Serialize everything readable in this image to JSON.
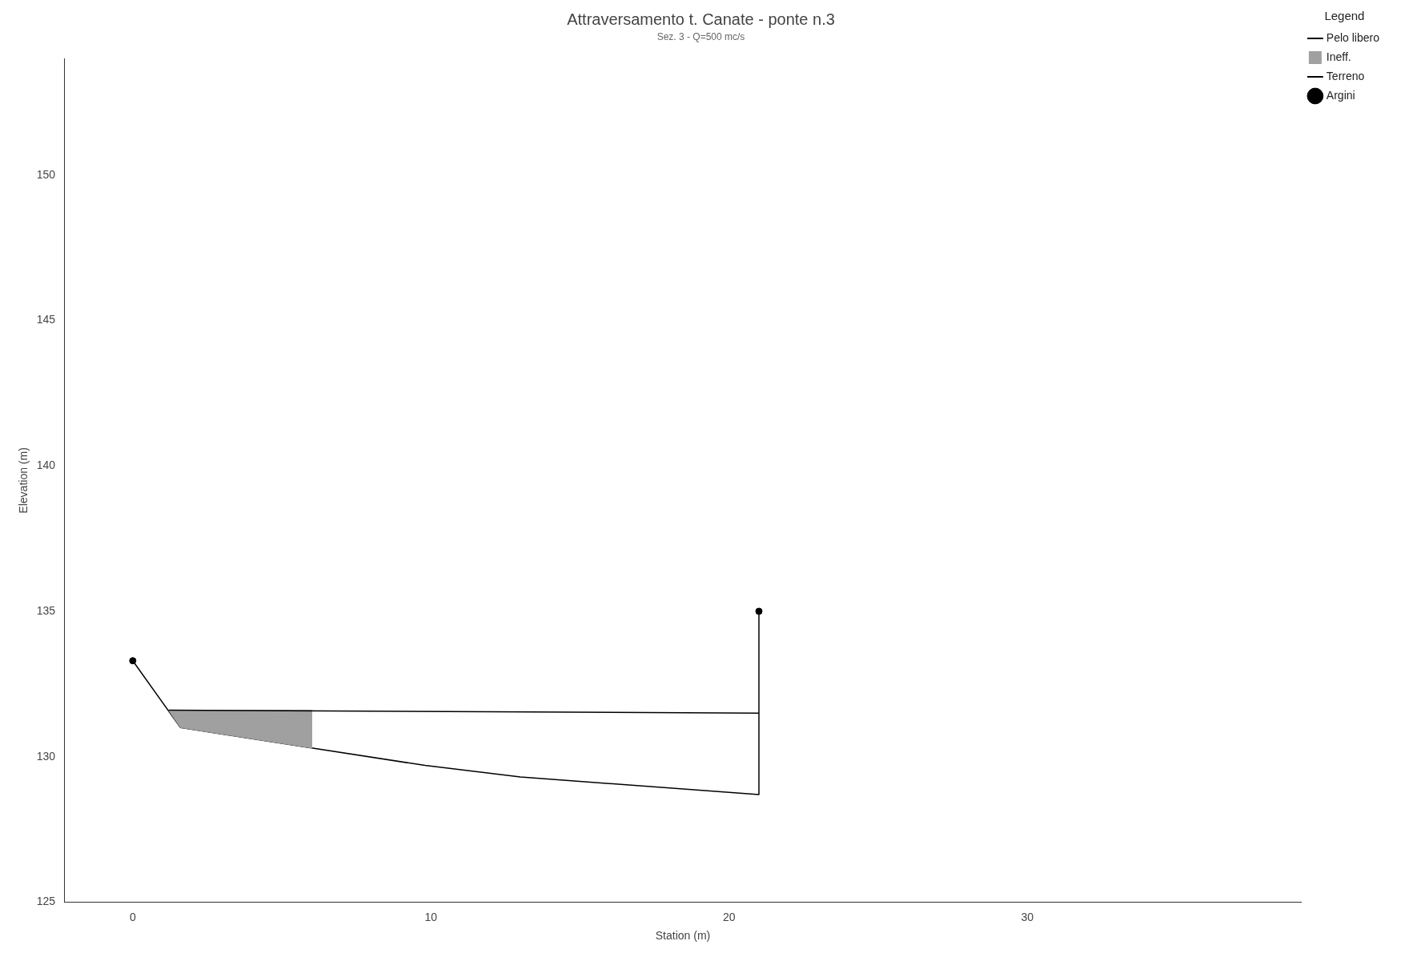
{
  "chart_data": {
    "type": "line",
    "title": "Attraversamento t. Canate - ponte n.3",
    "subtitle": "Sez. 3 - Q=500 mc/s",
    "xlabel": "Station (m)",
    "ylabel": "Elevation (m)",
    "legend_title": "Legend",
    "series": [
      {
        "name": "Pelo libero",
        "type": "line",
        "color": "#000000",
        "x": [
          1.2,
          21.0
        ],
        "values": [
          131.6,
          131.5
        ]
      },
      {
        "name": "Ineff.",
        "type": "area",
        "color": "#a0a0a0",
        "x": [
          1.2,
          6.0,
          6.0,
          1.6,
          1.2
        ],
        "values": [
          131.6,
          131.6,
          130.3,
          131.0,
          131.6
        ]
      },
      {
        "name": "Terreno",
        "type": "line",
        "color": "#000000",
        "x": [
          0,
          1.6,
          6.0,
          9.8,
          13.0,
          21.0,
          21.0
        ],
        "values": [
          133.3,
          131.0,
          130.3,
          129.7,
          129.3,
          128.7,
          135.0
        ]
      },
      {
        "name": "Argini",
        "type": "scatter",
        "color": "#000000",
        "x": [
          0,
          21.0
        ],
        "values": [
          133.3,
          135.0
        ],
        "marker": "circle"
      }
    ],
    "xlim": [
      -2.3,
      39.2
    ],
    "xticks": [
      0,
      10,
      20,
      30
    ],
    "ylim": [
      125,
      154
    ],
    "yticks": [
      125,
      130,
      135,
      140,
      145,
      150
    ],
    "grid": false,
    "legend": "top right"
  }
}
